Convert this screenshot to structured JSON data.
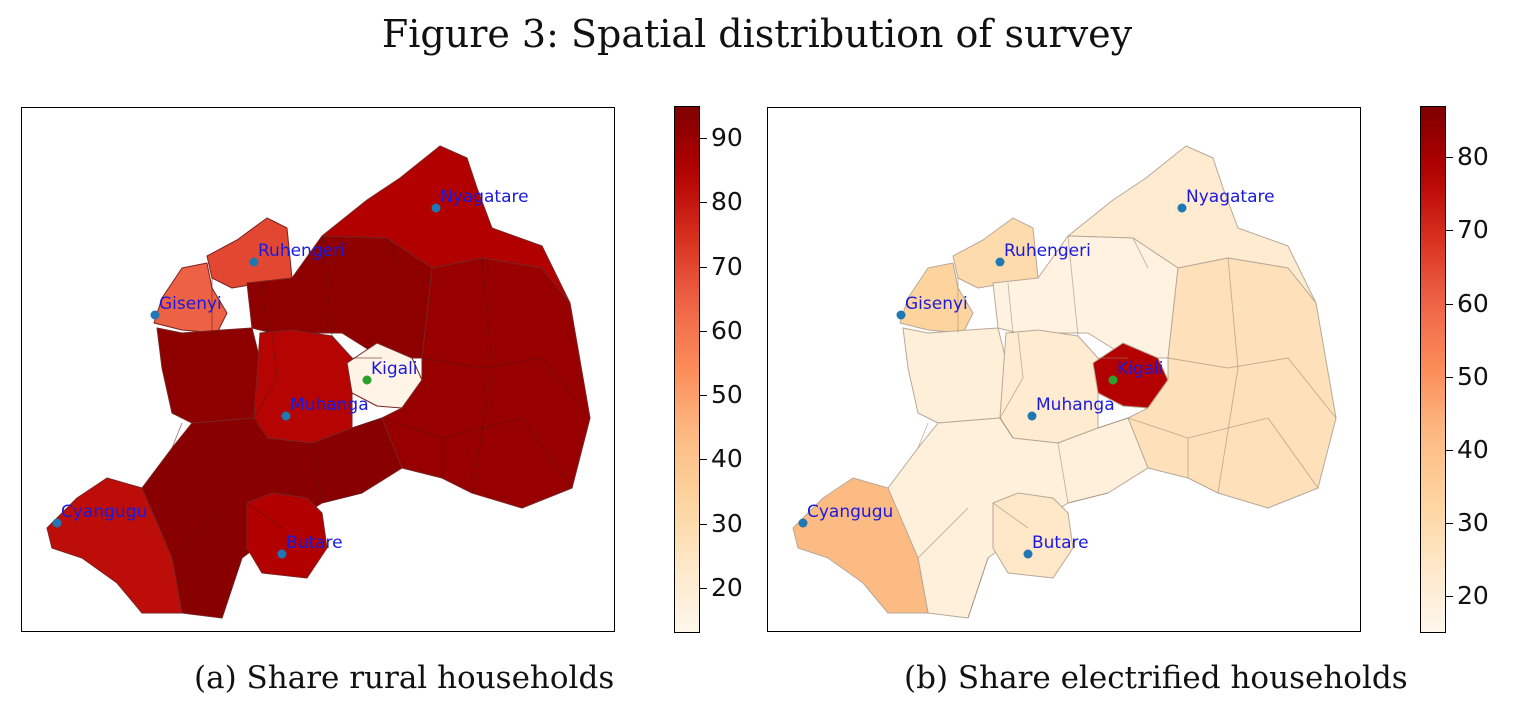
{
  "figure": {
    "title": "Figure 3: Spatial distribution of survey"
  },
  "panels": [
    {
      "caption": "(a) Share rural households",
      "colorbar": {
        "min": 13,
        "max": 95,
        "ticks": [
          "20",
          "30",
          "40",
          "50",
          "60",
          "70",
          "80",
          "90"
        ],
        "tick_values": [
          20,
          30,
          40,
          50,
          60,
          70,
          80,
          90
        ]
      },
      "district_values": [
        {
          "district": "north-east",
          "value": 85
        },
        {
          "district": "ruhengeri-area",
          "value": 70
        },
        {
          "district": "gisenyi-area",
          "value": 65
        },
        {
          "district": "west",
          "value": 92
        },
        {
          "district": "central",
          "value": 92
        },
        {
          "district": "muhanga-area",
          "value": 84
        },
        {
          "district": "kigali",
          "value": 15
        },
        {
          "district": "east",
          "value": 90
        },
        {
          "district": "south",
          "value": 93
        },
        {
          "district": "butare-area",
          "value": 85
        },
        {
          "district": "cyangugu-area",
          "value": 82
        }
      ],
      "cities": [
        {
          "name": "Nyagatare",
          "marker": "#1f77b4"
        },
        {
          "name": "Ruhengeri",
          "marker": "#1f77b4"
        },
        {
          "name": "Gisenyi",
          "marker": "#1f77b4"
        },
        {
          "name": "Kigali",
          "marker": "#2ca02c"
        },
        {
          "name": "Muhanga",
          "marker": "#1f77b4"
        },
        {
          "name": "Cyangugu",
          "marker": "#1f77b4"
        },
        {
          "name": "Butare",
          "marker": "#1f77b4"
        }
      ]
    },
    {
      "caption": "(b) Share electrified households",
      "colorbar": {
        "min": 15,
        "max": 87,
        "ticks": [
          "20",
          "30",
          "40",
          "50",
          "60",
          "70",
          "80"
        ],
        "tick_values": [
          20,
          30,
          40,
          50,
          60,
          70,
          80
        ]
      },
      "district_values": [
        {
          "district": "north-east",
          "value": 22
        },
        {
          "district": "ruhengeri-area",
          "value": 30
        },
        {
          "district": "gisenyi-area",
          "value": 33
        },
        {
          "district": "west",
          "value": 20
        },
        {
          "district": "central",
          "value": 18
        },
        {
          "district": "muhanga-area",
          "value": 22
        },
        {
          "district": "kigali",
          "value": 78
        },
        {
          "district": "east",
          "value": 27
        },
        {
          "district": "south",
          "value": 19
        },
        {
          "district": "butare-area",
          "value": 24
        },
        {
          "district": "cyangugu-area",
          "value": 42
        }
      ],
      "cities": [
        {
          "name": "Nyagatare",
          "marker": "#1f77b4"
        },
        {
          "name": "Ruhengeri",
          "marker": "#1f77b4"
        },
        {
          "name": "Gisenyi",
          "marker": "#1f77b4"
        },
        {
          "name": "Kigali",
          "marker": "#2ca02c"
        },
        {
          "name": "Muhanga",
          "marker": "#1f77b4"
        },
        {
          "name": "Cyangugu",
          "marker": "#1f77b4"
        },
        {
          "name": "Butare",
          "marker": "#1f77b4"
        }
      ]
    }
  ],
  "colormap": "OrRd",
  "colormap_stops": [
    "#fff7ec",
    "#fee8c8",
    "#fdd49e",
    "#fdbb84",
    "#fc8d59",
    "#ef6548",
    "#d7301f",
    "#b30000",
    "#7f0000"
  ],
  "label_color": "#1a1adf"
}
